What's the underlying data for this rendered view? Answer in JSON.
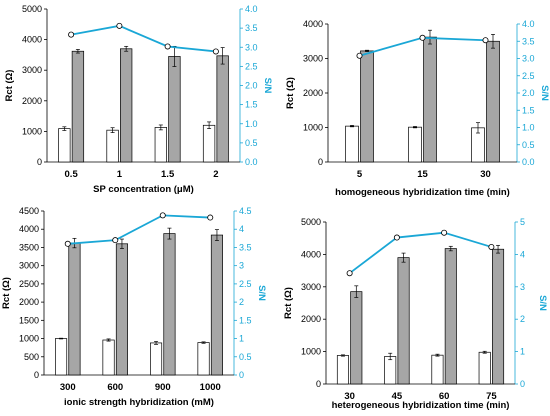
{
  "colors": {
    "bar_a": "#ffffff",
    "bar_b": "#a6a6a6",
    "bar_stroke": "#000000",
    "line": "#1aa7d6",
    "marker_fill": "#ffffff"
  },
  "chart_data": [
    {
      "type": "bar",
      "xlabel": "SP concentration (μM)",
      "ylabel": "Rct (Ω)",
      "y2label": "S/N",
      "categories": [
        "0.5",
        "1",
        "1.5",
        "2"
      ],
      "ylim": [
        0,
        5000
      ],
      "yticks": [
        0,
        1000,
        2000,
        3000,
        4000,
        5000
      ],
      "y2lim": [
        0,
        4.0
      ],
      "y2ticks": [
        "0.0",
        "0.5",
        "1.0",
        "1.5",
        "2.0",
        "2.5",
        "3.0",
        "3.5",
        "4.0"
      ],
      "series": [
        {
          "kind": "bar",
          "values": [
            1090,
            1040,
            1130,
            1200
          ],
          "errors": [
            60,
            80,
            80,
            110
          ]
        },
        {
          "kind": "bar",
          "values": [
            3620,
            3700,
            3450,
            3470
          ],
          "errors": [
            60,
            80,
            330,
            270
          ]
        },
        {
          "kind": "line",
          "axis": "right",
          "values": [
            3.33,
            3.56,
            3.02,
            2.89
          ]
        }
      ]
    },
    {
      "type": "bar",
      "xlabel": "homogeneous hybridization time (min)",
      "ylabel": "Rct (Ω)",
      "y2label": "S/N",
      "categories": [
        "5",
        "15",
        "30"
      ],
      "ylim": [
        0,
        4000
      ],
      "yticks": [
        0,
        1000,
        2000,
        3000,
        4000
      ],
      "y2lim": [
        0,
        4.0
      ],
      "y2ticks": [
        "0.0",
        "0.5",
        "1.0",
        "1.5",
        "2.0",
        "2.5",
        "3.0",
        "3.5",
        "4.0"
      ],
      "series": [
        {
          "kind": "bar",
          "values": [
            1040,
            1010,
            990
          ],
          "errors": [
            20,
            20,
            150
          ]
        },
        {
          "kind": "bar",
          "values": [
            3220,
            3620,
            3500
          ],
          "errors": [
            20,
            200,
            200
          ]
        },
        {
          "kind": "line",
          "axis": "right",
          "values": [
            3.08,
            3.6,
            3.53
          ]
        }
      ]
    },
    {
      "type": "bar",
      "xlabel": "ionic strength hybridization (mM)",
      "ylabel": "Rct (Ω)",
      "y2label": "S/N",
      "categories": [
        "300",
        "600",
        "900",
        "1000"
      ],
      "ylim": [
        0,
        4500
      ],
      "yticks": [
        0,
        500,
        1000,
        1500,
        2000,
        2500,
        3000,
        3500,
        4000,
        4500
      ],
      "y2lim": [
        0,
        4.5
      ],
      "y2ticks": [
        "0",
        "0.5",
        "1",
        "1.5",
        "2",
        "2.5",
        "3",
        "3.5",
        "4",
        "4.5"
      ],
      "series": [
        {
          "kind": "bar",
          "values": [
            1000,
            960,
            880,
            890
          ],
          "errors": [
            10,
            30,
            40,
            20
          ]
        },
        {
          "kind": "bar",
          "values": [
            3620,
            3600,
            3880,
            3840
          ],
          "errors": [
            130,
            130,
            150,
            150
          ]
        },
        {
          "kind": "line",
          "axis": "right",
          "values": [
            3.6,
            3.7,
            4.38,
            4.32
          ]
        }
      ]
    },
    {
      "type": "bar",
      "xlabel": "heterogeneous hybridization time (min)",
      "ylabel": "Rct (Ω)",
      "y2label": "S/N",
      "categories": [
        "30",
        "45",
        "60",
        "75"
      ],
      "ylim": [
        0,
        5000
      ],
      "yticks": [
        0,
        1000,
        2000,
        3000,
        4000,
        5000
      ],
      "y2lim": [
        0,
        5
      ],
      "y2ticks": [
        "0",
        "1",
        "2",
        "3",
        "4",
        "5"
      ],
      "series": [
        {
          "kind": "bar",
          "values": [
            880,
            850,
            890,
            980
          ],
          "errors": [
            20,
            100,
            30,
            30
          ]
        },
        {
          "kind": "bar",
          "values": [
            2850,
            3900,
            4180,
            4160
          ],
          "errors": [
            180,
            140,
            70,
            120
          ]
        },
        {
          "kind": "line",
          "axis": "right",
          "values": [
            3.42,
            4.52,
            4.67,
            4.23
          ]
        }
      ]
    }
  ]
}
